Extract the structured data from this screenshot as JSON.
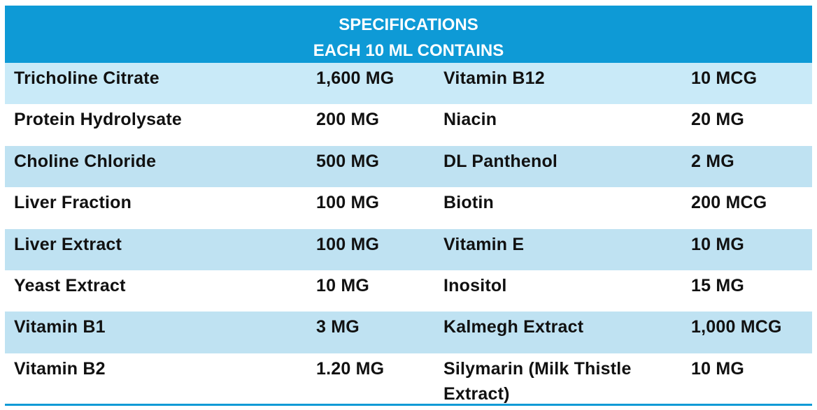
{
  "header": {
    "line1": "SPECIFICATIONS",
    "line2": "EACH 10 ML CONTAINS"
  },
  "rows": [
    {
      "ingredient_a": "Tricholine Citrate",
      "amount_a": "1,600 MG",
      "ingredient_b": "Vitamin B12",
      "amount_b": "10 MCG"
    },
    {
      "ingredient_a": "Protein Hydrolysate",
      "amount_a": "200 MG",
      "ingredient_b": "Niacin",
      "amount_b": "20 MG"
    },
    {
      "ingredient_a": "Choline Chloride",
      "amount_a": "500 MG",
      "ingredient_b": "DL Panthenol",
      "amount_b": "2 MG"
    },
    {
      "ingredient_a": "Liver Fraction",
      "amount_a": "100 MG",
      "ingredient_b": "Biotin",
      "amount_b": "200 MCG"
    },
    {
      "ingredient_a": "Liver Extract",
      "amount_a": "100 MG",
      "ingredient_b": "Vitamin E",
      "amount_b": "10 MG"
    },
    {
      "ingredient_a": "Yeast Extract",
      "amount_a": "10 MG",
      "ingredient_b": "Inositol",
      "amount_b": "15 MG"
    },
    {
      "ingredient_a": "Vitamin B1",
      "amount_a": "3 MG",
      "ingredient_b": "Kalmegh Extract",
      "amount_b": "1,000 MCG"
    },
    {
      "ingredient_a": "Vitamin B2",
      "amount_a": "1.20 MG",
      "ingredient_b": "Silymarin (Milk Thistle Extract)",
      "amount_b": "10 MG"
    }
  ],
  "colors": {
    "header_bg": "#0e9ad6",
    "header_text": "#ffffff",
    "stripe": "#c9eaf8",
    "row": "#ffffff"
  }
}
